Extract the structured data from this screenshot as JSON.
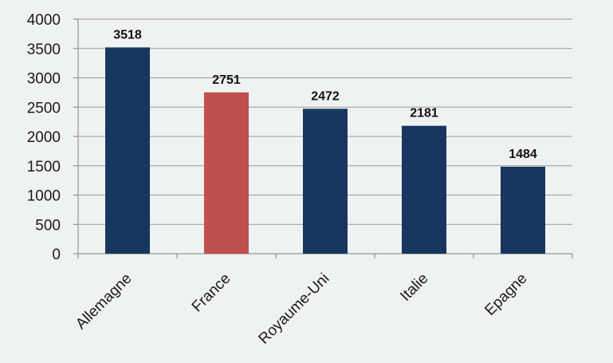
{
  "colors": {
    "background": "#eef2f3",
    "bar_default": "#17375e",
    "bar_highlight": "#c0504d",
    "gridline": "#9a9a9a",
    "axis": "#808080"
  },
  "chart_data": {
    "type": "bar",
    "title": "",
    "xlabel": "",
    "ylabel": "",
    "categories": [
      "Allemagne",
      "France",
      "Royaume-Uni",
      "Italie",
      "Epagne"
    ],
    "values": [
      3518,
      2751,
      2472,
      2181,
      1484
    ],
    "highlight_index": 1,
    "ylim": [
      0,
      4000
    ],
    "yticks": [
      0,
      500,
      1000,
      1500,
      2000,
      2500,
      3000,
      3500,
      4000
    ],
    "ytick_labels": [
      "0",
      "500",
      "1000",
      "1500",
      "2000",
      "2500",
      "3000",
      "3500",
      "4000"
    ],
    "data_labels": [
      "3518",
      "2751",
      "2472",
      "2181",
      "1484"
    ],
    "grid": true,
    "legend": "none"
  }
}
